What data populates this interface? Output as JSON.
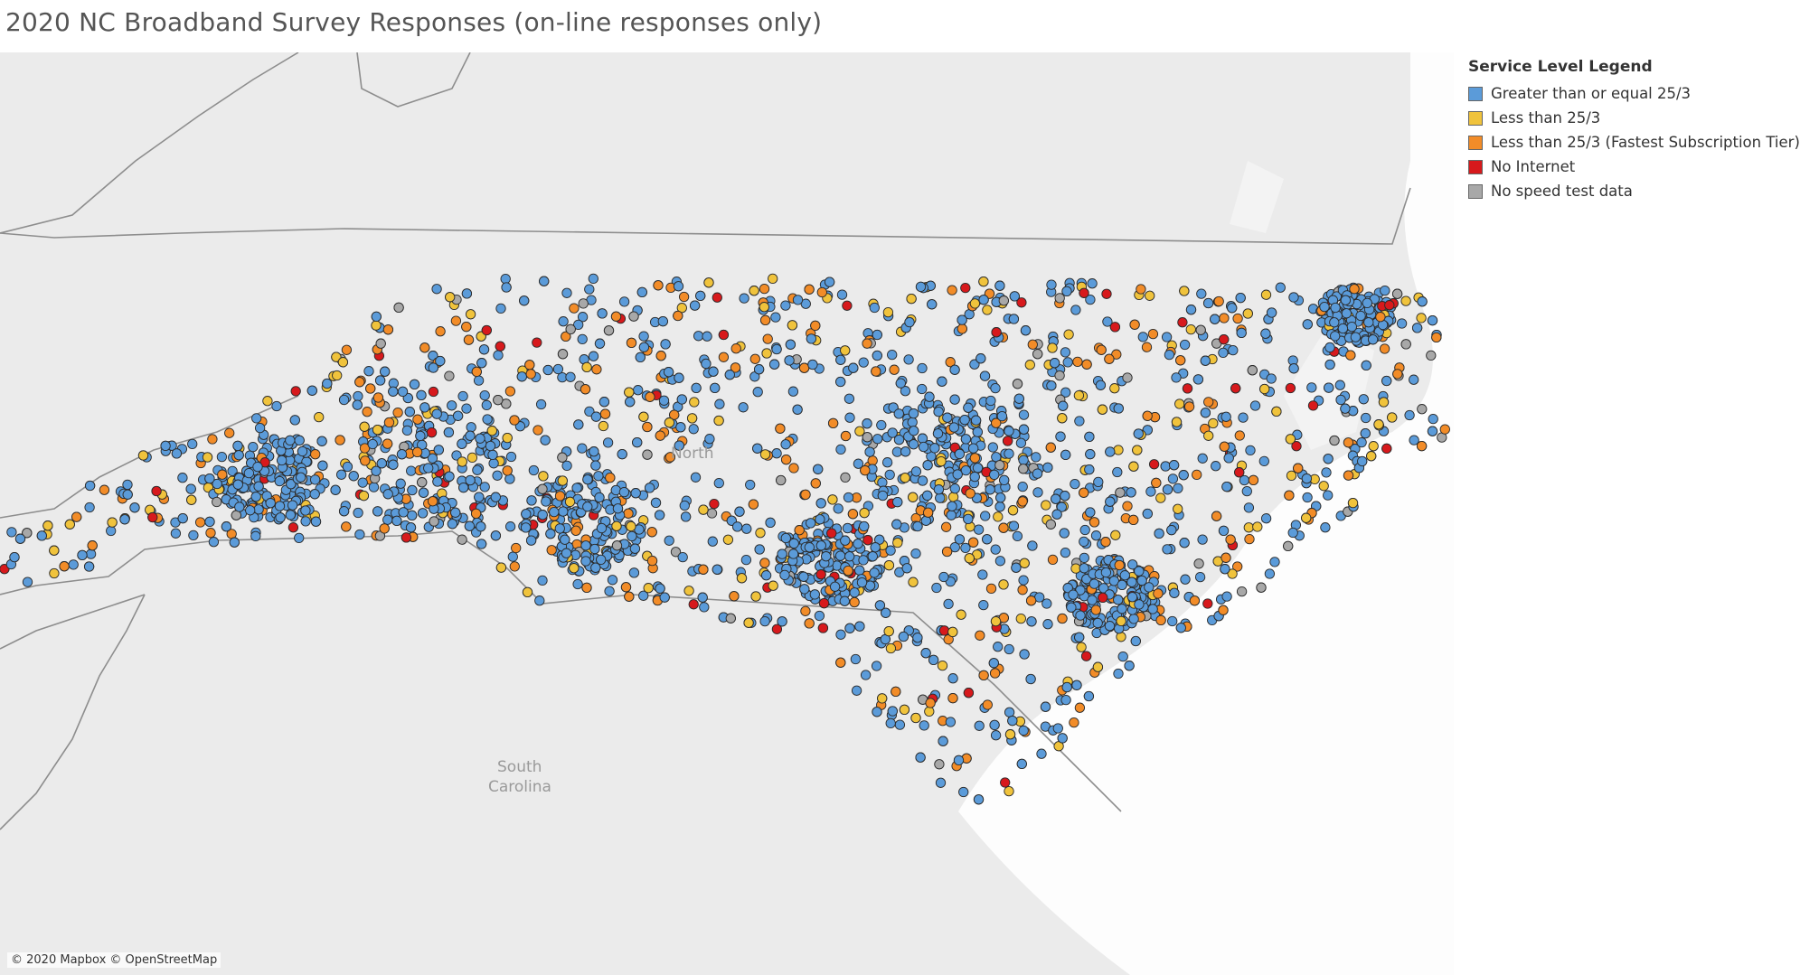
{
  "title": "2020 NC Broadband Survey Responses (on-line responses only)",
  "map": {
    "labels": {
      "north": "North",
      "south_line1": "South",
      "south_line2": "Carolina"
    },
    "attribution": "© 2020 Mapbox © OpenStreetMap"
  },
  "legend": {
    "title": "Service Level Legend",
    "items": [
      {
        "label": "Greater than or equal 25/3",
        "color": "#5b9bd9"
      },
      {
        "label": "Less than 25/3",
        "color": "#f0c33c"
      },
      {
        "label": "Less than 25/3 (Fastest Subscription Tier)",
        "color": "#f28c28"
      },
      {
        "label": "No Internet",
        "color": "#d7191c"
      },
      {
        "label": "No speed test data",
        "color": "#a8a8a8"
      }
    ]
  }
}
